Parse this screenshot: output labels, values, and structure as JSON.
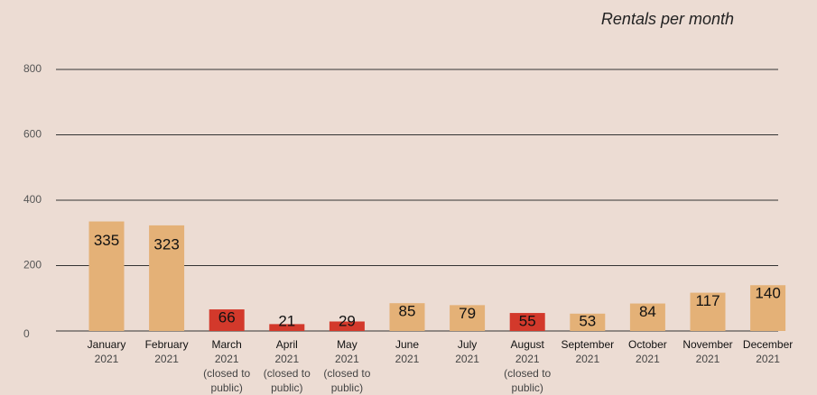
{
  "chart_data": {
    "type": "bar",
    "title": "Rentals per month",
    "categories": [
      "January",
      "February",
      "March",
      "April",
      "May",
      "June",
      "July",
      "August",
      "September",
      "October",
      "November",
      "December"
    ],
    "years": [
      "2021",
      "2021",
      "2021",
      "2021",
      "2021",
      "2021",
      "2021",
      "2021",
      "2021",
      "2021",
      "2021",
      "2021"
    ],
    "notes": [
      null,
      null,
      [
        "(closed to",
        "public)"
      ],
      [
        "(closed to",
        "public)"
      ],
      [
        "(closed to",
        "public)"
      ],
      null,
      null,
      [
        "(closed to",
        "public)"
      ],
      null,
      null,
      null,
      null
    ],
    "values": [
      335,
      323,
      66,
      21,
      29,
      85,
      79,
      55,
      53,
      84,
      117,
      140
    ],
    "colors": [
      "#e4b177",
      "#e4b177",
      "#d3392b",
      "#d3392b",
      "#d3392b",
      "#e4b177",
      "#e4b177",
      "#d3392b",
      "#e4b177",
      "#e4b177",
      "#e4b177",
      "#e4b177"
    ],
    "ylim": [
      0,
      800
    ],
    "yticks": [
      0,
      200,
      400,
      600,
      800
    ],
    "grid": true
  }
}
